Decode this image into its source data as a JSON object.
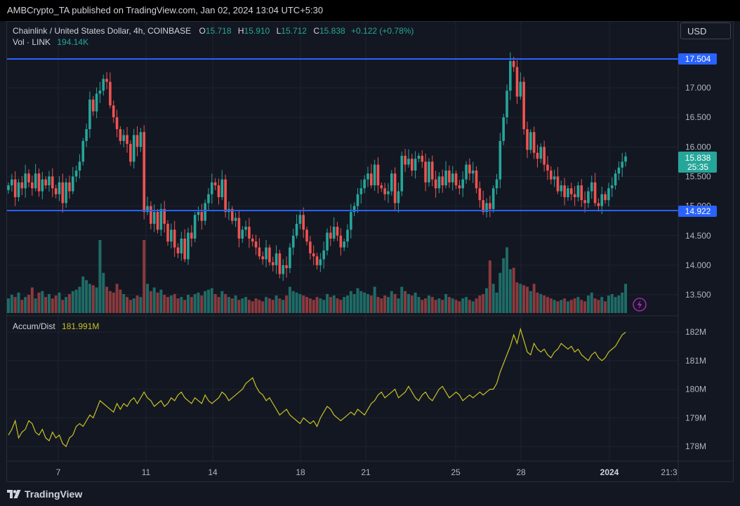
{
  "header": {
    "published_text": "AMBCrypto_TA published on TradingView.com, Jan 02, 2024 13:04 UTC+5:30"
  },
  "legend": {
    "symbol": "Chainlink / United States Dollar, 4h, COINBASE",
    "o_label": "O",
    "o_value": "15.718",
    "h_label": "H",
    "h_value": "15.910",
    "l_label": "L",
    "l_value": "15.712",
    "c_label": "C",
    "c_value": "15.838",
    "change": "+0.122 (+0.78%)",
    "vol_label": "Vol · LINK",
    "vol_value": "194.14K",
    "ad_label": "Accum/Dist",
    "ad_value": "181.991M"
  },
  "currency_button": "USD",
  "price_tags": {
    "resistance": "17.504",
    "support": "14.922",
    "last_price": "15.838",
    "countdown": "25:35"
  },
  "footer": {
    "brand": "TradingView"
  },
  "colors": {
    "background": "#131722",
    "up": "#26a69a",
    "down": "#ef5350",
    "hline": "#2962ff",
    "ad_line": "#c7c224",
    "grid": "#1f2330"
  },
  "chart_data": [
    {
      "type": "candlestick",
      "title": "Chainlink / United States Dollar, 4h, COINBASE",
      "ylim": [
        13.25,
        17.95
      ],
      "yticks": [
        "17.000",
        "16.500",
        "16.000",
        "15.500",
        "15.000",
        "14.500",
        "14.000",
        "13.500"
      ],
      "x_tick_labels": [
        "7",
        "11",
        "14",
        "18",
        "21",
        "25",
        "28",
        "2024",
        "21:3"
      ],
      "horizontal_lines": [
        17.504,
        14.922
      ],
      "close_path": [
        15.35,
        15.45,
        15.15,
        15.4,
        15.3,
        15.55,
        15.4,
        15.3,
        15.55,
        15.25,
        15.45,
        15.35,
        15.5,
        15.3,
        15.2,
        15.4,
        15.05,
        15.4,
        15.25,
        15.5,
        15.6,
        15.75,
        16.1,
        16.3,
        16.8,
        16.6,
        16.9,
        16.95,
        17.15,
        17.1,
        16.7,
        16.5,
        16.3,
        16.1,
        16.2,
        16.05,
        15.75,
        16.2,
        16.0,
        16.25,
        14.9,
        15.0,
        14.7,
        14.9,
        14.6,
        14.95,
        14.7,
        14.4,
        14.6,
        14.3,
        14.2,
        14.45,
        14.1,
        14.55,
        14.45,
        14.85,
        14.9,
        14.75,
        15.05,
        15.2,
        15.4,
        15.35,
        15.15,
        15.45,
        14.9,
        14.95,
        14.75,
        14.8,
        14.45,
        14.6,
        14.65,
        14.45,
        14.4,
        14.3,
        14.15,
        14.1,
        14.3,
        14.05,
        14.0,
        14.2,
        13.85,
        14.0,
        13.95,
        14.3,
        14.5,
        14.7,
        14.85,
        14.6,
        14.4,
        14.2,
        14.15,
        14.0,
        14.1,
        14.25,
        14.55,
        14.45,
        14.65,
        14.5,
        14.3,
        14.4,
        14.6,
        14.9,
        15.0,
        15.2,
        15.3,
        15.45,
        15.55,
        15.35,
        15.7,
        15.35,
        15.3,
        15.2,
        15.25,
        15.55,
        15.05,
        15.25,
        15.85,
        15.7,
        15.8,
        15.6,
        15.8,
        15.85,
        15.75,
        15.4,
        15.75,
        15.45,
        15.3,
        15.5,
        15.35,
        15.6,
        15.4,
        15.55,
        15.35,
        15.3,
        15.45,
        15.7,
        15.55,
        15.6,
        15.3,
        15.1,
        14.9,
        15.05,
        14.95,
        15.3,
        15.45,
        16.1,
        16.5,
        16.95,
        17.45,
        17.35,
        16.85,
        17.1,
        16.3,
        15.95,
        16.25,
        15.9,
        15.8,
        16.0,
        15.7,
        15.6,
        15.45,
        15.5,
        15.25,
        15.35,
        15.15,
        15.3,
        15.2,
        15.15,
        15.35,
        15.1,
        15.05,
        15.25,
        15.4,
        15.05,
        15.0,
        15.2,
        15.1,
        15.3,
        15.35,
        15.55,
        15.65,
        15.75,
        15.84
      ]
    },
    {
      "type": "bar",
      "title": "Vol · LINK",
      "latest_value": "194.14K",
      "relative_heights": [
        0.2,
        0.25,
        0.22,
        0.28,
        0.18,
        0.22,
        0.25,
        0.35,
        0.2,
        0.28,
        0.3,
        0.22,
        0.26,
        0.2,
        0.24,
        0.28,
        0.18,
        0.22,
        0.26,
        0.3,
        0.32,
        0.36,
        0.5,
        0.45,
        0.4,
        0.38,
        0.35,
        1.0,
        0.55,
        0.36,
        0.3,
        0.28,
        0.4,
        0.32,
        0.26,
        0.22,
        0.18,
        0.2,
        0.24,
        0.22,
        1.0,
        0.4,
        0.3,
        0.35,
        0.28,
        0.32,
        0.25,
        0.22,
        0.24,
        0.26,
        0.2,
        0.22,
        0.18,
        0.25,
        0.22,
        0.26,
        0.28,
        0.24,
        0.3,
        0.32,
        0.34,
        0.26,
        0.22,
        0.3,
        0.26,
        0.22,
        0.2,
        0.24,
        0.18,
        0.2,
        0.22,
        0.18,
        0.16,
        0.2,
        0.18,
        0.16,
        0.22,
        0.2,
        0.18,
        0.24,
        0.2,
        0.18,
        0.24,
        0.36,
        0.3,
        0.28,
        0.26,
        0.24,
        0.22,
        0.2,
        0.18,
        0.22,
        0.2,
        0.18,
        0.26,
        0.22,
        0.24,
        0.2,
        0.18,
        0.22,
        0.24,
        0.3,
        0.26,
        0.34,
        0.3,
        0.28,
        0.26,
        0.24,
        0.36,
        0.22,
        0.2,
        0.24,
        0.22,
        0.3,
        0.26,
        0.2,
        0.36,
        0.3,
        0.26,
        0.24,
        0.28,
        0.22,
        0.18,
        0.2,
        0.24,
        0.22,
        0.18,
        0.2,
        0.18,
        0.26,
        0.22,
        0.2,
        0.18,
        0.16,
        0.2,
        0.22,
        0.18,
        0.16,
        0.2,
        0.24,
        0.26,
        0.34,
        0.72,
        0.4,
        0.28,
        0.55,
        0.75,
        0.9,
        0.6,
        0.62,
        0.42,
        0.4,
        0.38,
        0.36,
        0.3,
        0.4,
        0.28,
        0.26,
        0.24,
        0.22,
        0.2,
        0.18,
        0.16,
        0.18,
        0.2,
        0.16,
        0.18,
        0.2,
        0.22,
        0.18,
        0.16,
        0.24,
        0.28,
        0.2,
        0.18,
        0.22,
        0.16,
        0.24,
        0.26,
        0.22,
        0.24,
        0.28,
        0.4
      ]
    },
    {
      "type": "line",
      "title": "Accum/Dist",
      "latest_value": "181.991M",
      "ylim": [
        177.6,
        182.4
      ],
      "yticks": [
        "182M",
        "181M",
        "180M",
        "179M",
        "178M"
      ],
      "values": [
        178.4,
        178.6,
        178.9,
        178.3,
        178.5,
        178.6,
        178.9,
        178.8,
        178.5,
        178.4,
        178.6,
        178.3,
        178.2,
        178.5,
        178.3,
        178.4,
        178.1,
        178.0,
        178.3,
        178.4,
        178.7,
        178.8,
        178.7,
        178.9,
        179.1,
        179.0,
        179.3,
        179.6,
        179.5,
        179.4,
        179.3,
        179.2,
        179.5,
        179.3,
        179.5,
        179.4,
        179.6,
        179.7,
        179.5,
        179.7,
        179.9,
        179.7,
        179.6,
        179.4,
        179.5,
        179.6,
        179.4,
        179.5,
        179.7,
        179.6,
        179.8,
        179.9,
        179.7,
        179.6,
        179.5,
        179.7,
        179.6,
        179.5,
        179.8,
        179.6,
        179.5,
        179.6,
        179.7,
        179.9,
        179.8,
        179.6,
        179.7,
        179.8,
        179.9,
        180.0,
        180.2,
        180.3,
        180.4,
        180.1,
        179.9,
        179.8,
        179.6,
        179.7,
        179.5,
        179.3,
        179.1,
        179.2,
        179.3,
        179.1,
        179.0,
        178.9,
        178.8,
        179.0,
        178.9,
        178.8,
        178.9,
        178.7,
        179.0,
        179.2,
        179.4,
        179.3,
        179.1,
        179.0,
        178.9,
        179.0,
        179.1,
        179.2,
        179.1,
        179.3,
        179.2,
        179.1,
        179.3,
        179.5,
        179.6,
        179.8,
        179.9,
        179.7,
        179.8,
        179.9,
        180.0,
        179.7,
        179.8,
        179.9,
        180.1,
        179.9,
        179.7,
        179.6,
        179.8,
        179.9,
        179.7,
        179.6,
        179.8,
        180.0,
        180.1,
        179.9,
        179.7,
        179.8,
        179.9,
        179.8,
        179.6,
        179.7,
        179.8,
        179.7,
        179.8,
        179.9,
        179.8,
        179.9,
        180.0,
        180.0,
        180.2,
        180.6,
        180.9,
        181.2,
        181.5,
        181.9,
        181.6,
        182.1,
        181.7,
        181.3,
        181.2,
        181.6,
        181.4,
        181.3,
        181.4,
        181.2,
        181.1,
        181.3,
        181.4,
        181.6,
        181.5,
        181.4,
        181.5,
        181.3,
        181.4,
        181.2,
        181.1,
        181.0,
        181.2,
        181.3,
        181.1,
        181.0,
        181.1,
        181.3,
        181.4,
        181.5,
        181.7,
        181.9,
        181.99
      ]
    }
  ]
}
